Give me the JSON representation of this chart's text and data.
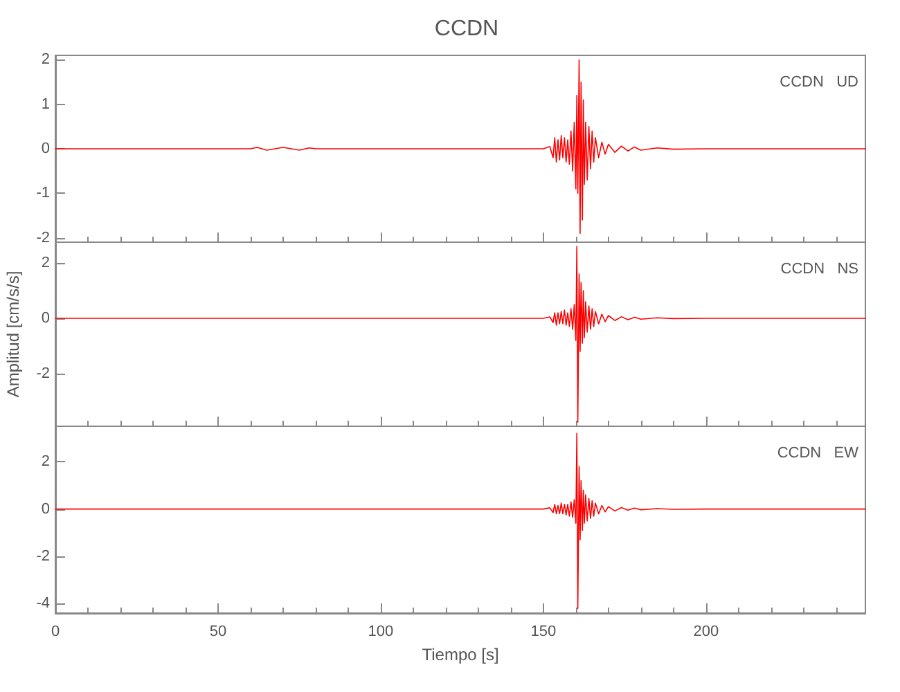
{
  "chart_data": [
    {
      "type": "line",
      "title": "CCDN",
      "annotations": [
        "CCDN   UD"
      ],
      "tick_labels": "y",
      "grid": false,
      "xlim": [
        0,
        249
      ],
      "xticks": [
        0,
        50,
        100,
        150,
        200
      ],
      "ylim": [
        -2.1,
        2.1
      ],
      "yticks": [
        -2,
        -1,
        0,
        1,
        2
      ],
      "x": [
        0,
        20,
        40,
        60,
        62,
        65,
        70,
        75,
        78,
        80,
        100,
        120,
        140,
        150,
        152,
        153,
        153.5,
        154,
        154.5,
        155,
        155.5,
        156,
        156.5,
        157,
        157.5,
        158,
        158.5,
        159,
        159.5,
        160,
        160.3,
        160.6,
        161,
        161.3,
        161.6,
        162,
        162.3,
        162.6,
        163,
        163.5,
        164,
        164.5,
        165,
        165.5,
        166,
        167,
        168,
        169,
        170,
        172,
        174,
        176,
        178,
        180,
        185,
        190,
        200,
        220,
        249
      ],
      "series": [
        {
          "color": "#ff0000",
          "values": [
            0,
            0,
            0,
            0,
            0.03,
            -0.03,
            0.03,
            -0.03,
            0.02,
            0,
            0,
            0,
            0,
            0,
            0.05,
            -0.2,
            0.25,
            -0.3,
            0.2,
            -0.25,
            0.3,
            -0.2,
            0.25,
            -0.3,
            0.2,
            -0.35,
            0.4,
            -0.5,
            0.6,
            -0.9,
            1.2,
            -1.0,
            2.0,
            -1.9,
            1.5,
            -1.6,
            1.1,
            -0.8,
            0.6,
            -0.7,
            0.5,
            -0.45,
            0.4,
            -0.3,
            0.25,
            -0.2,
            0.15,
            -0.12,
            0.1,
            -0.08,
            0.06,
            -0.05,
            0.04,
            -0.03,
            0.02,
            -0.01,
            0,
            0,
            0
          ]
        }
      ]
    },
    {
      "type": "line",
      "ylabel": "Amplitud [cm/s/s]",
      "annotations": [
        "CCDN   NS"
      ],
      "tick_labels": "y",
      "grid": false,
      "xlim": [
        0,
        249
      ],
      "xticks": [
        0,
        50,
        100,
        150,
        200
      ],
      "ylim": [
        -3.9,
        2.75
      ],
      "yticks": [
        -2,
        0,
        2
      ],
      "x": [
        0,
        20,
        40,
        60,
        62,
        65,
        70,
        75,
        78,
        80,
        100,
        120,
        140,
        150,
        152,
        153,
        153.5,
        154,
        154.5,
        155,
        155.5,
        156,
        156.5,
        157,
        157.5,
        158,
        158.5,
        159,
        159.5,
        160,
        160.3,
        160.6,
        161,
        161.3,
        161.6,
        162,
        162.3,
        162.6,
        163,
        163.5,
        164,
        164.5,
        165,
        165.5,
        166,
        167,
        168,
        169,
        170,
        172,
        174,
        176,
        178,
        180,
        185,
        190,
        200,
        220,
        249
      ],
      "series": [
        {
          "color": "#ff0000",
          "values": [
            0,
            0,
            0,
            0,
            0,
            0,
            0,
            0,
            0,
            0,
            0,
            0,
            0,
            0,
            0.05,
            -0.15,
            0.2,
            -0.25,
            0.2,
            -0.2,
            0.25,
            -0.2,
            0.3,
            -0.25,
            0.2,
            -0.3,
            0.35,
            -0.4,
            0.5,
            -0.8,
            2.6,
            -3.75,
            1.6,
            -1.2,
            1.3,
            -0.9,
            1.0,
            -0.7,
            0.6,
            -0.5,
            0.45,
            -0.4,
            0.35,
            -0.3,
            0.25,
            -0.2,
            0.15,
            -0.12,
            0.1,
            -0.08,
            0.06,
            -0.05,
            0.04,
            -0.03,
            0.02,
            -0.01,
            0,
            0,
            0
          ]
        }
      ]
    },
    {
      "type": "line",
      "xlabel": "Tiempo [s]",
      "annotations": [
        "CCDN   EW"
      ],
      "grid": false,
      "xlim": [
        0,
        249
      ],
      "xticks": [
        0,
        50,
        100,
        150,
        200
      ],
      "ylim": [
        -4.4,
        3.5
      ],
      "yticks": [
        -4,
        -2,
        0,
        2
      ],
      "x": [
        0,
        20,
        40,
        60,
        62,
        65,
        70,
        75,
        78,
        80,
        100,
        120,
        140,
        150,
        152,
        153,
        153.5,
        154,
        154.5,
        155,
        155.5,
        156,
        156.5,
        157,
        157.5,
        158,
        158.5,
        159,
        159.5,
        160,
        160.3,
        160.6,
        161,
        161.3,
        161.6,
        162,
        162.3,
        162.6,
        163,
        163.5,
        164,
        164.5,
        165,
        165.5,
        166,
        167,
        168,
        169,
        170,
        172,
        174,
        176,
        178,
        180,
        185,
        190,
        200,
        220,
        249
      ],
      "series": [
        {
          "color": "#ff0000",
          "values": [
            0,
            0,
            0,
            0,
            0,
            0,
            0,
            0,
            0,
            0,
            0,
            0,
            0,
            0,
            0.05,
            -0.15,
            0.2,
            -0.2,
            0.15,
            -0.2,
            0.25,
            -0.2,
            0.2,
            -0.25,
            0.2,
            -0.3,
            0.3,
            -0.35,
            0.4,
            -0.6,
            3.2,
            -4.2,
            1.8,
            -1.3,
            1.2,
            -0.9,
            0.8,
            -0.6,
            0.6,
            -0.5,
            0.45,
            -0.4,
            0.35,
            -0.3,
            0.25,
            -0.2,
            0.15,
            -0.12,
            0.1,
            -0.08,
            0.06,
            -0.05,
            0.04,
            -0.03,
            0.02,
            -0.01,
            0,
            0,
            0
          ]
        }
      ]
    }
  ]
}
